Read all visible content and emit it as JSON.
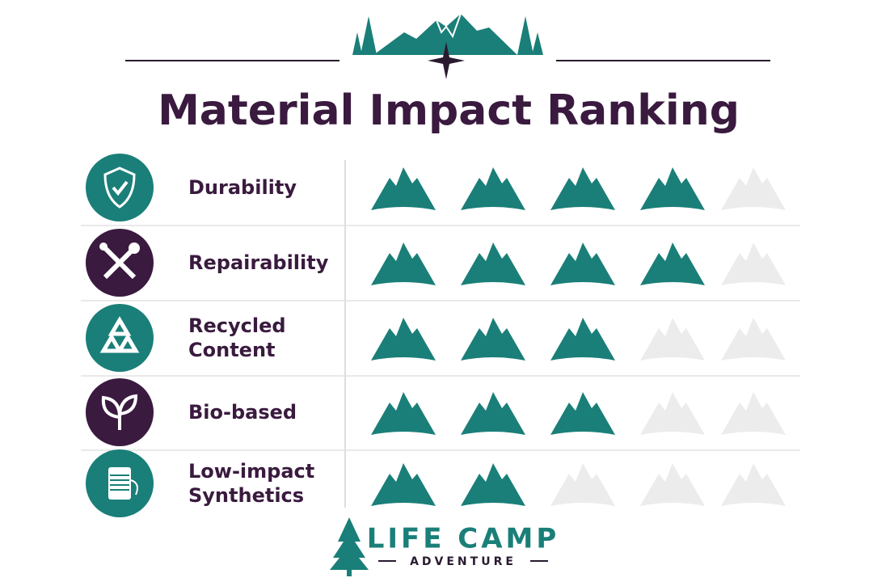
{
  "title": "Material Impact Ranking",
  "max_rating": 5,
  "rows": [
    {
      "label": "Durability",
      "rating": 4
    },
    {
      "label": "Repairability",
      "rating": 4
    },
    {
      "label": "Recycled Content",
      "rating": 3
    },
    {
      "label": "Bio-based",
      "rating": 3
    },
    {
      "label": "Low-impact Synthetics",
      "rating": 2
    }
  ],
  "footer": {
    "brand": "LIFE CAMP",
    "tagline": "ADVENTURE"
  }
}
